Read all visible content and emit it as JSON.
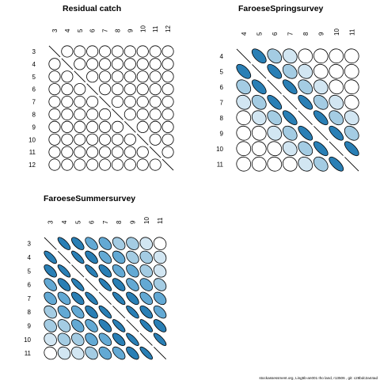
{
  "footer": "stockassessment.org, Ling5b-an001 Iho land, r13506 , git: c28bdc2a44ad",
  "chart_data": [
    {
      "type": "correlation-ellipse-matrix",
      "title": "Residual catch",
      "labels": [
        "3",
        "4",
        "5",
        "6",
        "7",
        "8",
        "9",
        "10",
        "11",
        "12"
      ],
      "matrix": [
        [
          1,
          0,
          0,
          0,
          0,
          0,
          0,
          0,
          0,
          0
        ],
        [
          0,
          1,
          0,
          0,
          0,
          0,
          0,
          0,
          0,
          0
        ],
        [
          0,
          0,
          1,
          0,
          0,
          0,
          0,
          0,
          0,
          0
        ],
        [
          0,
          0,
          0,
          1,
          0,
          0,
          0,
          0,
          0,
          0
        ],
        [
          0,
          0,
          0,
          0,
          1,
          0,
          0,
          0,
          0,
          0
        ],
        [
          0,
          0,
          0,
          0,
          0,
          1,
          0,
          0,
          0,
          0
        ],
        [
          0,
          0,
          0,
          0,
          0,
          0,
          1,
          0,
          0,
          0
        ],
        [
          0,
          0,
          0,
          0,
          0,
          0,
          0,
          1,
          0,
          0
        ],
        [
          0,
          0,
          0,
          0,
          0,
          0,
          0,
          0,
          1,
          0
        ],
        [
          0,
          0,
          0,
          0,
          0,
          0,
          0,
          0,
          0,
          1
        ]
      ]
    },
    {
      "type": "correlation-ellipse-matrix",
      "title": "FaroeseSpringsurvey",
      "labels": [
        "4",
        "5",
        "6",
        "7",
        "8",
        "9",
        "10",
        "11"
      ],
      "matrix": [
        [
          1,
          0.6,
          0.3,
          0.15,
          0.05,
          0.05,
          0.02,
          0.02
        ],
        [
          0.6,
          1,
          0.65,
          0.3,
          0.15,
          0.08,
          0.05,
          0.02
        ],
        [
          0.3,
          0.65,
          1,
          0.7,
          0.35,
          0.15,
          0.08,
          0.05
        ],
        [
          0.15,
          0.3,
          0.7,
          1,
          0.7,
          0.35,
          0.2,
          0.08
        ],
        [
          0.05,
          0.15,
          0.35,
          0.7,
          1,
          0.7,
          0.35,
          0.2
        ],
        [
          0.05,
          0.08,
          0.15,
          0.35,
          0.7,
          1,
          0.7,
          0.35
        ],
        [
          0.02,
          0.05,
          0.08,
          0.2,
          0.35,
          0.7,
          1,
          0.7
        ],
        [
          0.02,
          0.02,
          0.05,
          0.08,
          0.2,
          0.35,
          0.7,
          1
        ]
      ]
    },
    {
      "type": "correlation-ellipse-matrix",
      "title": "FaroeseSummersurvey",
      "labels": [
        "3",
        "4",
        "5",
        "6",
        "7",
        "8",
        "9",
        "10",
        "11"
      ],
      "matrix": [
        [
          1,
          0.75,
          0.65,
          0.55,
          0.45,
          0.35,
          0.25,
          0.15,
          0.1
        ],
        [
          0.75,
          1,
          0.8,
          0.65,
          0.55,
          0.45,
          0.35,
          0.25,
          0.15
        ],
        [
          0.65,
          0.8,
          1,
          0.8,
          0.65,
          0.55,
          0.45,
          0.3,
          0.2
        ],
        [
          0.55,
          0.65,
          0.8,
          1,
          0.8,
          0.65,
          0.55,
          0.4,
          0.3
        ],
        [
          0.45,
          0.55,
          0.65,
          0.8,
          1,
          0.8,
          0.65,
          0.55,
          0.4
        ],
        [
          0.35,
          0.45,
          0.55,
          0.65,
          0.8,
          1,
          0.8,
          0.65,
          0.55
        ],
        [
          0.25,
          0.35,
          0.45,
          0.55,
          0.65,
          0.8,
          1,
          0.8,
          0.65
        ],
        [
          0.15,
          0.25,
          0.3,
          0.4,
          0.55,
          0.65,
          0.8,
          1,
          0.8
        ],
        [
          0.1,
          0.15,
          0.2,
          0.3,
          0.4,
          0.55,
          0.65,
          0.8,
          1
        ]
      ]
    }
  ]
}
